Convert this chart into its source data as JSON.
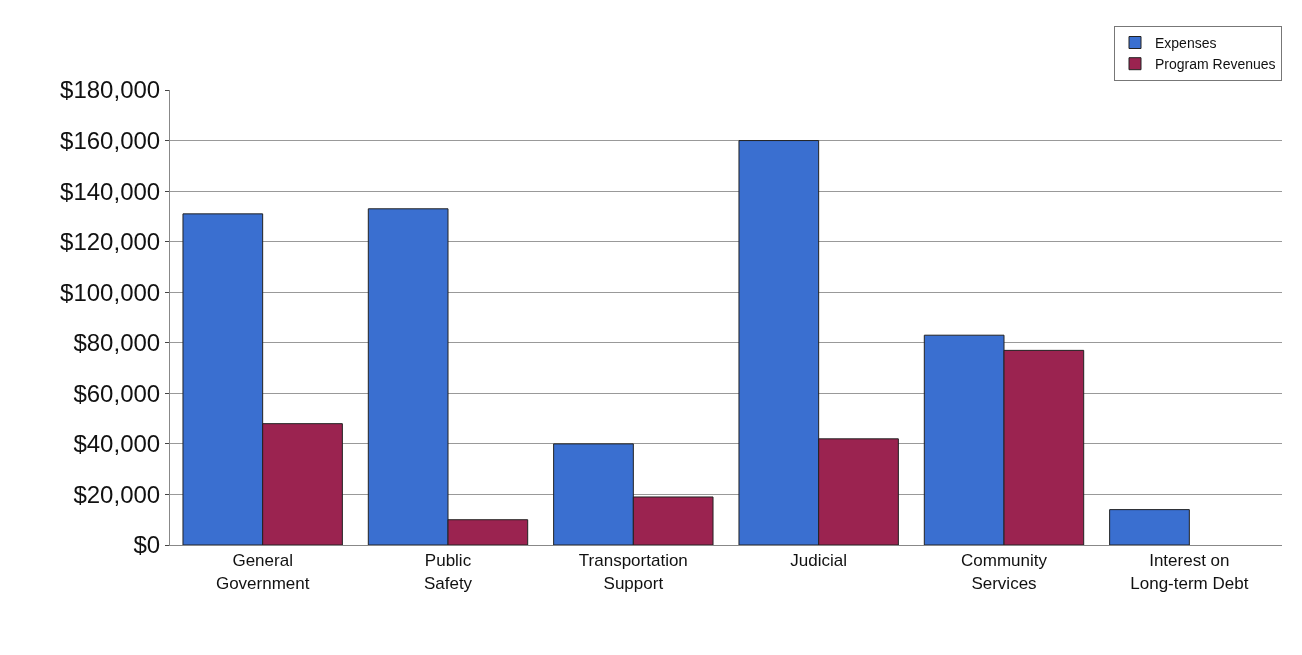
{
  "chart_data": {
    "type": "bar",
    "categories": [
      "General Government",
      "Public Safety",
      "Transportation Support",
      "Judicial",
      "Community Services",
      "Interest on Long-term Debt"
    ],
    "series": [
      {
        "name": "Expenses",
        "color": "#3a6fd0",
        "values": [
          131000,
          133000,
          40000,
          160000,
          83000,
          14000
        ]
      },
      {
        "name": "Program Revenues",
        "color": "#9b2350",
        "values": [
          48000,
          10000,
          19000,
          42000,
          77000,
          null
        ]
      }
    ],
    "ylim": [
      0,
      180000
    ],
    "yticks": [
      {
        "value": 0,
        "label": "$0"
      },
      {
        "value": 20000,
        "label": "$20,000"
      },
      {
        "value": 40000,
        "label": "$40,000"
      },
      {
        "value": 60000,
        "label": "$60,000"
      },
      {
        "value": 80000,
        "label": "$80,000"
      },
      {
        "value": 100000,
        "label": "$100,000"
      },
      {
        "value": 120000,
        "label": "$120,000"
      },
      {
        "value": 140000,
        "label": "$140,000"
      },
      {
        "value": 160000,
        "label": "$160,000"
      },
      {
        "value": 180000,
        "label": "$180,000"
      }
    ],
    "grid": "y",
    "legend": "top right"
  }
}
